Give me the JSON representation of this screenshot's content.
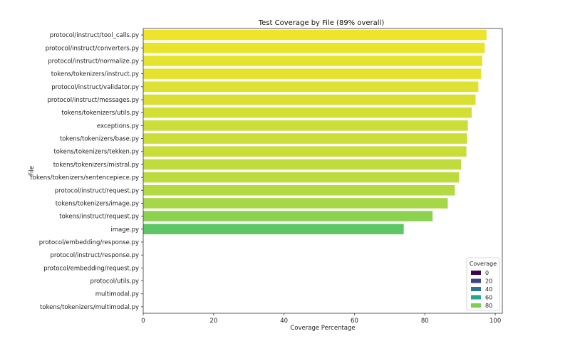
{
  "chart_data": {
    "type": "bar",
    "orientation": "horizontal",
    "title": "Test Coverage by File (89% overall)",
    "xlabel": "Coverage Percentage",
    "ylabel": "File",
    "xlim": [
      0,
      102
    ],
    "xticks": [
      0,
      20,
      40,
      60,
      80,
      100
    ],
    "grid": false,
    "categories": [
      "protocol/instruct/tool_calls.py",
      "protocol/instruct/converters.py",
      "protocol/instruct/normalize.py",
      "tokens/tokenizers/instruct.py",
      "protocol/instruct/validator.py",
      "protocol/instruct/messages.py",
      "tokens/tokenizers/utils.py",
      "exceptions.py",
      "tokens/tokenizers/base.py",
      "tokens/tokenizers/tekken.py",
      "tokens/tokenizers/mistral.py",
      "tokens/tokenizers/sentencepiece.py",
      "protocol/instruct/request.py",
      "tokens/tokenizers/image.py",
      "tokens/instruct/request.py",
      "image.py",
      "protocol/embedding/response.py",
      "protocol/instruct/response.py",
      "protocol/embedding/request.py",
      "protocol/utils.py",
      "multimodal.py",
      "tokens/tokenizers/multimodal.py"
    ],
    "values": [
      97.5,
      97,
      96.3,
      96,
      95.2,
      94.4,
      93.3,
      92.2,
      92,
      91.8,
      90.3,
      89.7,
      88.5,
      86.5,
      82.2,
      74,
      0,
      0,
      0,
      0,
      0,
      0
    ],
    "legend": {
      "title": "Coverage",
      "position": "lower-right",
      "entries": [
        {
          "label": "0",
          "color": "#440154"
        },
        {
          "label": "20",
          "color": "#414487"
        },
        {
          "label": "40",
          "color": "#2a788e"
        },
        {
          "label": "60",
          "color": "#22a884"
        },
        {
          "label": "80",
          "color": "#7ad151"
        }
      ]
    }
  }
}
